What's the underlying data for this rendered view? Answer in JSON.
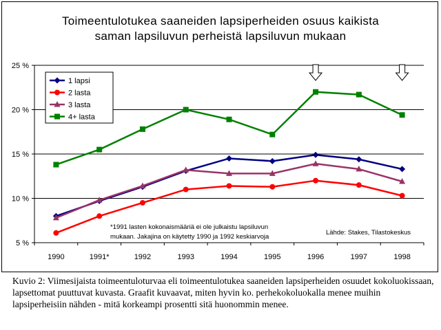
{
  "title_lines": [
    "Toimeentulotukea saaneiden lapsiperheiden osuus kaikista",
    "saman lapsiluvun perheistä lapsiluvun mukaan"
  ],
  "chart_data": {
    "type": "line",
    "categories": [
      "1990",
      "1991*",
      "1992",
      "1993",
      "1994",
      "1995",
      "1996",
      "1997",
      "1998"
    ],
    "ylim": [
      5,
      25
    ],
    "yticks": [
      "5 %",
      "10 %",
      "15 %",
      "20 %",
      "25 %"
    ],
    "grid": "horizontal",
    "legend_position": "top-left",
    "series": [
      {
        "name": "1 lapsi",
        "color": "#000080",
        "marker": "diamond",
        "values": [
          8.0,
          9.7,
          11.3,
          13.1,
          14.5,
          14.2,
          14.9,
          14.4,
          13.3
        ]
      },
      {
        "name": "2 lasta",
        "color": "#ff0000",
        "marker": "circle",
        "values": [
          6.1,
          8.0,
          9.5,
          11.0,
          11.4,
          11.3,
          12.0,
          11.5,
          10.3
        ]
      },
      {
        "name": "3 lasta",
        "color": "#993366",
        "marker": "triangle",
        "values": [
          7.8,
          9.8,
          11.4,
          13.2,
          12.8,
          12.8,
          13.9,
          13.3,
          11.9
        ]
      },
      {
        "name": "4+ lasta",
        "color": "#008000",
        "marker": "square",
        "values": [
          13.8,
          15.5,
          17.8,
          20.0,
          18.9,
          17.2,
          22.0,
          21.7,
          19.4
        ]
      }
    ],
    "annotations": {
      "footnote_lines": [
        "*1991 lasten kokonaismääriä ei ole julkaistu lapsiluvun",
        "mukaan. Jakajina on käytetty 1990 ja 1992 keskiarvoja"
      ],
      "source": "Lähde: Stakes, Tilastokeskus",
      "arrows_at": [
        "1996",
        "1998"
      ]
    }
  },
  "caption": "Kuvio 2: Viimesijaista toimeentuloturvaa eli toimeentulotukea saaneiden lapsiperheiden osuudet kokoluokissaan, lapsettomat puuttuvat kuvasta. Graafit kuvaavat, miten hyvin ko. perhekokoluokalla menee muihin lapsiperheisiin nähden - mitä korkeampi prosentti sitä huonommin menee."
}
